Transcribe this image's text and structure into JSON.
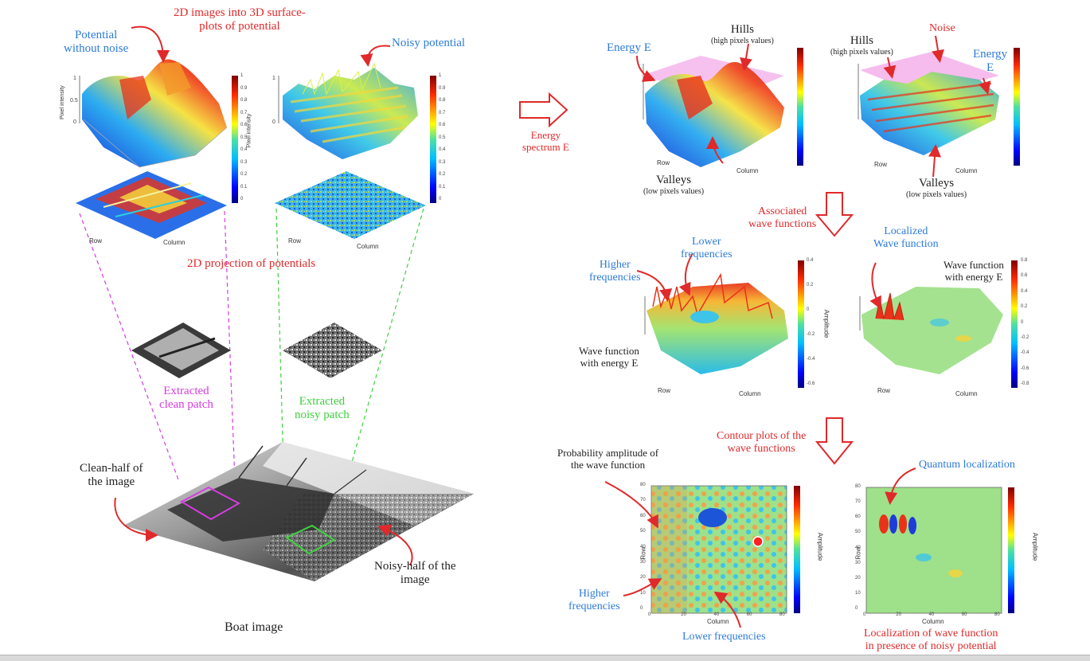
{
  "labels": {
    "title_2d_to_3d": [
      "2D images into 3D surface-",
      "plots of potential"
    ],
    "potential_without_noise": [
      "Potential",
      "without noise"
    ],
    "noisy_potential": "Noisy potential",
    "projection": "2D projection of potentials",
    "extracted_clean": [
      "Extracted",
      "clean patch"
    ],
    "extracted_noisy": [
      "Extracted",
      "noisy patch"
    ],
    "clean_half": [
      "Clean-half of",
      "the image"
    ],
    "noisy_half": [
      "Noisy-half of the",
      "image"
    ],
    "boat_image": "Boat image",
    "energy_spectrum": [
      "Energy",
      "spectrum E"
    ],
    "energy_e_left": "Energy E",
    "hills_left": "Hills",
    "hills_left_sub": "(high pixels values)",
    "hills_right": "Hills",
    "hills_right_sub": "(high pixels values)",
    "noise": "Noise",
    "energy_e_right": [
      "Energy",
      "E"
    ],
    "valleys_left": "Valleys",
    "valleys_left_sub": "(low pixels values)",
    "valleys_right": "Valleys",
    "valleys_right_sub": "(low pixels values)",
    "associated_wave": [
      "Associated",
      "wave functions"
    ],
    "lower_freq_top": [
      "Lower",
      "frequencies"
    ],
    "higher_freq_top": [
      "Higher",
      "frequencies"
    ],
    "wave_fn_energy_left": [
      "Wave function",
      "with energy E"
    ],
    "localized_wave": [
      "Localized",
      "Wave function"
    ],
    "wave_fn_energy_right": [
      "Wave function",
      "with energy E"
    ],
    "contour_plots": [
      "Contour plots of the",
      "wave functions"
    ],
    "probability_amplitude": [
      "Probability amplitude of",
      "the wave function"
    ],
    "quantum_localization": "Quantum localization",
    "higher_freq_bottom": [
      "Higher",
      "frequencies"
    ],
    "lower_freq_bottom": "Lower frequencies",
    "localization_caption": [
      "Localization of wave function",
      "in presence of noisy potential"
    ]
  },
  "axes": {
    "pixel_intensity": "Pixel intensity",
    "row": "Row",
    "column": "Column",
    "amplitude": "Amplitude",
    "colorbar_potential": [
      "1",
      "0.9",
      "0.8",
      "0.7",
      "0.6",
      "0.5",
      "0.4",
      "0.3",
      "0.2",
      "0.1",
      "0"
    ],
    "colorbar_wave_left": [
      "0.4",
      "0.2",
      "0",
      "-0.2",
      "-0.4",
      "-0.6"
    ],
    "colorbar_wave_right": [
      "0.8",
      "0.6",
      "0.4",
      "0.2",
      "0",
      "-0.2",
      "-0.4",
      "-0.6",
      "-0.8"
    ],
    "contour_y_ticks": [
      "80",
      "70",
      "60",
      "50",
      "40",
      "30",
      "20",
      "10",
      "0"
    ],
    "contour_x_ticks": [
      "0",
      "20",
      "40",
      "60",
      "80"
    ]
  },
  "colors": {
    "annotation_red": "#e0292b",
    "annotation_blue": "#2d7bd6",
    "clean_patch": "#d63be0",
    "noisy_patch": "#3fd13f",
    "energy_plane": "#f3a6e8"
  }
}
